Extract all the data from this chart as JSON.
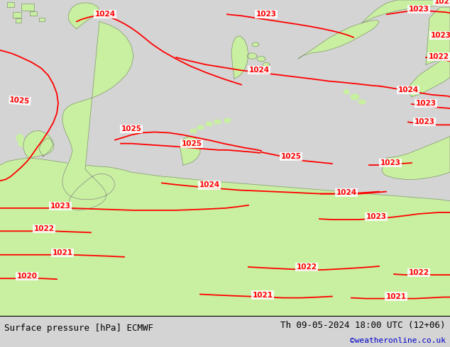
{
  "title_left": "Surface pressure [hPa] ECMWF",
  "title_right": "Th 09-05-2024 18:00 UTC (12+06)",
  "credit": "©weatheronline.co.uk",
  "bg_color": "#d4d4d4",
  "land_color": "#c8f0a0",
  "sea_color": "#d4d4d4",
  "isobar_color": "#ff0000",
  "coast_color": "#888888",
  "label_color": "#ff0000",
  "title_color": "#000000",
  "credit_color": "#0000cc",
  "isobar_linewidth": 1.3,
  "isobar_label_fontsize": 7.5,
  "title_fontsize": 9,
  "credit_fontsize": 8,
  "figsize": [
    6.34,
    4.9
  ],
  "dpi": 100
}
